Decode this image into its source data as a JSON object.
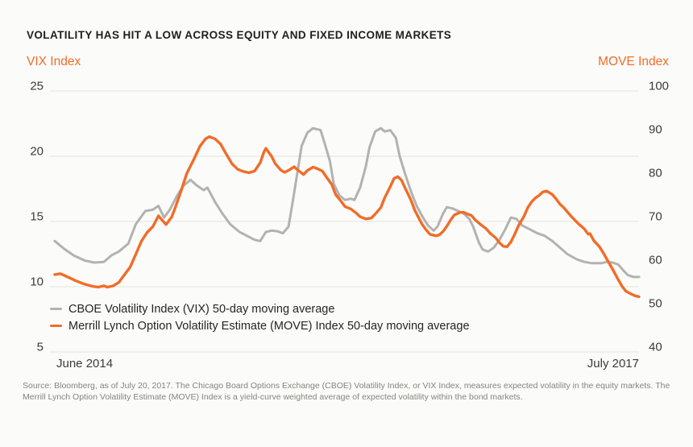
{
  "title": "VOLATILITY HAS HIT A LOW ACROSS EQUITY AND FIXED INCOME MARKETS",
  "source": "Source: Bloomberg, as of July 20, 2017. The Chicago Board Options Exchange (CBOE) Volatility Index, or VIX Index, measures expected volatility in the equity markets. The Merrill Lynch Option Volatility Estimate (MOVE) Index is a yield-curve weighted average of expected volatility within the bond markets.",
  "colors": {
    "vix_line": "#b3b2b1",
    "move_line": "#f16c29",
    "accent_orange": "#f16c29",
    "grid": "#e3e3e0"
  },
  "chart_data": {
    "type": "line",
    "title": "VOLATILITY HAS HIT A LOW ACROSS EQUITY AND FIXED INCOME MARKETS",
    "x_axis": {
      "start_label": "June 2014",
      "end_label": "July 2017",
      "range": [
        2014.45,
        2017.55
      ]
    },
    "left_axis": {
      "title": "VIX Index",
      "min": 5,
      "max": 25,
      "ticks": [
        25,
        20,
        15,
        10,
        5
      ]
    },
    "right_axis": {
      "title": "MOVE Index",
      "min": 40,
      "max": 100,
      "ticks": [
        100,
        90,
        80,
        70,
        60,
        50,
        40
      ]
    },
    "grid": true,
    "legend_position": "bottom-left",
    "series": [
      {
        "name": "CBOE Volatility Index (VIX) 50-day moving average",
        "axis": "left",
        "color": "#b3b2b1",
        "points": [
          [
            2014.45,
            13.5
          ],
          [
            2014.5,
            12.9
          ],
          [
            2014.55,
            12.4
          ],
          [
            2014.61,
            12.0
          ],
          [
            2014.66,
            11.85
          ],
          [
            2014.71,
            11.9
          ],
          [
            2014.75,
            12.4
          ],
          [
            2014.79,
            12.7
          ],
          [
            2014.84,
            13.3
          ],
          [
            2014.88,
            14.8
          ],
          [
            2014.93,
            15.8
          ],
          [
            2014.97,
            15.9
          ],
          [
            2015.0,
            16.2
          ],
          [
            2015.03,
            15.3
          ],
          [
            2015.06,
            15.9
          ],
          [
            2015.1,
            17.0
          ],
          [
            2015.13,
            17.7
          ],
          [
            2015.17,
            18.2
          ],
          [
            2015.2,
            17.8
          ],
          [
            2015.24,
            17.4
          ],
          [
            2015.26,
            17.6
          ],
          [
            2015.3,
            16.5
          ],
          [
            2015.34,
            15.6
          ],
          [
            2015.38,
            14.8
          ],
          [
            2015.43,
            14.2
          ],
          [
            2015.47,
            13.9
          ],
          [
            2015.51,
            13.6
          ],
          [
            2015.54,
            13.5
          ],
          [
            2015.57,
            14.2
          ],
          [
            2015.6,
            14.3
          ],
          [
            2015.63,
            14.25
          ],
          [
            2015.66,
            14.1
          ],
          [
            2015.69,
            14.6
          ],
          [
            2015.71,
            16.3
          ],
          [
            2015.74,
            19.0
          ],
          [
            2015.76,
            20.8
          ],
          [
            2015.79,
            21.8
          ],
          [
            2015.82,
            22.15
          ],
          [
            2015.86,
            22.0
          ],
          [
            2015.88,
            21.1
          ],
          [
            2015.91,
            19.6
          ],
          [
            2015.93,
            17.9
          ],
          [
            2015.96,
            17.0
          ],
          [
            2015.99,
            16.65
          ],
          [
            2016.02,
            16.75
          ],
          [
            2016.04,
            16.65
          ],
          [
            2016.07,
            17.6
          ],
          [
            2016.1,
            19.2
          ],
          [
            2016.12,
            20.7
          ],
          [
            2016.15,
            21.9
          ],
          [
            2016.18,
            22.15
          ],
          [
            2016.2,
            21.9
          ],
          [
            2016.23,
            22.0
          ],
          [
            2016.26,
            21.4
          ],
          [
            2016.28,
            20.0
          ],
          [
            2016.31,
            18.6
          ],
          [
            2016.34,
            17.3
          ],
          [
            2016.37,
            16.2
          ],
          [
            2016.4,
            15.4
          ],
          [
            2016.43,
            14.7
          ],
          [
            2016.46,
            14.3
          ],
          [
            2016.48,
            14.6
          ],
          [
            2016.51,
            15.6
          ],
          [
            2016.53,
            16.1
          ],
          [
            2016.56,
            16.0
          ],
          [
            2016.59,
            15.8
          ],
          [
            2016.62,
            15.6
          ],
          [
            2016.65,
            15.2
          ],
          [
            2016.67,
            14.6
          ],
          [
            2016.7,
            13.4
          ],
          [
            2016.72,
            12.85
          ],
          [
            2016.75,
            12.7
          ],
          [
            2016.78,
            13.0
          ],
          [
            2016.81,
            13.6
          ],
          [
            2016.84,
            14.4
          ],
          [
            2016.87,
            15.3
          ],
          [
            2016.9,
            15.2
          ],
          [
            2016.93,
            14.7
          ],
          [
            2016.97,
            14.4
          ],
          [
            2017.01,
            14.1
          ],
          [
            2017.05,
            13.9
          ],
          [
            2017.09,
            13.5
          ],
          [
            2017.13,
            13.0
          ],
          [
            2017.17,
            12.5
          ],
          [
            2017.22,
            12.1
          ],
          [
            2017.26,
            11.9
          ],
          [
            2017.3,
            11.8
          ],
          [
            2017.35,
            11.8
          ],
          [
            2017.38,
            11.9
          ],
          [
            2017.41,
            11.85
          ],
          [
            2017.44,
            11.7
          ],
          [
            2017.47,
            11.2
          ],
          [
            2017.49,
            10.9
          ],
          [
            2017.52,
            10.75
          ],
          [
            2017.55,
            10.75
          ]
        ]
      },
      {
        "name": "Merrill Lynch Option Volatility Estimate (MOVE) Index 50-day moving average",
        "axis": "right",
        "color": "#f16c29",
        "points": [
          [
            2014.45,
            57.8
          ],
          [
            2014.48,
            58.0
          ],
          [
            2014.52,
            57.2
          ],
          [
            2014.56,
            56.4
          ],
          [
            2014.6,
            55.7
          ],
          [
            2014.65,
            55.1
          ],
          [
            2014.68,
            54.9
          ],
          [
            2014.71,
            55.2
          ],
          [
            2014.73,
            54.9
          ],
          [
            2014.76,
            55.2
          ],
          [
            2014.79,
            56.0
          ],
          [
            2014.81,
            57.2
          ],
          [
            2014.85,
            59.5
          ],
          [
            2014.88,
            62.5
          ],
          [
            2014.91,
            65.5
          ],
          [
            2014.94,
            67.5
          ],
          [
            2014.97,
            68.8
          ],
          [
            2015.0,
            71.3
          ],
          [
            2015.04,
            69.3
          ],
          [
            2015.07,
            71.0
          ],
          [
            2015.09,
            73.3
          ],
          [
            2015.12,
            77.0
          ],
          [
            2015.15,
            81.0
          ],
          [
            2015.19,
            84.5
          ],
          [
            2015.22,
            87.3
          ],
          [
            2015.25,
            89.0
          ],
          [
            2015.27,
            89.5
          ],
          [
            2015.3,
            89.0
          ],
          [
            2015.33,
            87.8
          ],
          [
            2015.36,
            85.5
          ],
          [
            2015.39,
            83.3
          ],
          [
            2015.42,
            82.0
          ],
          [
            2015.45,
            81.5
          ],
          [
            2015.48,
            81.2
          ],
          [
            2015.51,
            81.6
          ],
          [
            2015.54,
            83.5
          ],
          [
            2015.56,
            86.0
          ],
          [
            2015.57,
            86.8
          ],
          [
            2015.6,
            85.0
          ],
          [
            2015.62,
            83.3
          ],
          [
            2015.65,
            81.8
          ],
          [
            2015.67,
            81.3
          ],
          [
            2015.7,
            82.0
          ],
          [
            2015.72,
            82.6
          ],
          [
            2015.74,
            81.8
          ],
          [
            2015.77,
            80.8
          ],
          [
            2015.79,
            81.7
          ],
          [
            2015.82,
            82.5
          ],
          [
            2015.84,
            82.2
          ],
          [
            2015.87,
            81.6
          ],
          [
            2015.89,
            80.3
          ],
          [
            2015.92,
            78.5
          ],
          [
            2015.94,
            76.2
          ],
          [
            2015.97,
            74.6
          ],
          [
            2015.99,
            73.4
          ],
          [
            2016.02,
            72.9
          ],
          [
            2016.05,
            71.9
          ],
          [
            2016.07,
            71.1
          ],
          [
            2016.1,
            70.6
          ],
          [
            2016.13,
            70.8
          ],
          [
            2016.15,
            71.7
          ],
          [
            2016.18,
            73.2
          ],
          [
            2016.2,
            75.4
          ],
          [
            2016.23,
            78.0
          ],
          [
            2016.25,
            79.9
          ],
          [
            2016.27,
            80.3
          ],
          [
            2016.29,
            79.5
          ],
          [
            2016.31,
            77.6
          ],
          [
            2016.34,
            74.9
          ],
          [
            2016.36,
            72.6
          ],
          [
            2016.38,
            70.9
          ],
          [
            2016.4,
            69.3
          ],
          [
            2016.42,
            68.1
          ],
          [
            2016.44,
            67.1
          ],
          [
            2016.47,
            66.7
          ],
          [
            2016.49,
            66.9
          ],
          [
            2016.51,
            67.7
          ],
          [
            2016.53,
            68.9
          ],
          [
            2016.55,
            70.3
          ],
          [
            2016.57,
            71.5
          ],
          [
            2016.6,
            72.1
          ],
          [
            2016.62,
            72.1
          ],
          [
            2016.64,
            71.7
          ],
          [
            2016.66,
            71.4
          ],
          [
            2016.68,
            70.4
          ],
          [
            2016.71,
            69.3
          ],
          [
            2016.74,
            68.3
          ],
          [
            2016.76,
            67.3
          ],
          [
            2016.79,
            66.2
          ],
          [
            2016.81,
            65.1
          ],
          [
            2016.83,
            64.3
          ],
          [
            2016.85,
            64.2
          ],
          [
            2016.87,
            65.3
          ],
          [
            2016.89,
            67.0
          ],
          [
            2016.91,
            69.0
          ],
          [
            2016.94,
            71.2
          ],
          [
            2016.96,
            73.2
          ],
          [
            2016.98,
            74.5
          ],
          [
            2017.0,
            75.4
          ],
          [
            2017.02,
            76.0
          ],
          [
            2017.04,
            76.8
          ],
          [
            2017.06,
            77.0
          ],
          [
            2017.09,
            76.2
          ],
          [
            2017.11,
            75.2
          ],
          [
            2017.13,
            74.0
          ],
          [
            2017.15,
            73.2
          ],
          [
            2017.17,
            72.2
          ],
          [
            2017.19,
            71.2
          ],
          [
            2017.21,
            70.3
          ],
          [
            2017.23,
            69.4
          ],
          [
            2017.26,
            68.3
          ],
          [
            2017.28,
            67.1
          ],
          [
            2017.29,
            67.2
          ],
          [
            2017.31,
            65.6
          ],
          [
            2017.34,
            64.2
          ],
          [
            2017.36,
            62.8
          ],
          [
            2017.38,
            61.3
          ],
          [
            2017.4,
            59.8
          ],
          [
            2017.42,
            58.2
          ],
          [
            2017.44,
            56.6
          ],
          [
            2017.46,
            55.1
          ],
          [
            2017.48,
            54.0
          ],
          [
            2017.51,
            53.3
          ],
          [
            2017.53,
            52.9
          ],
          [
            2017.55,
            52.7
          ]
        ]
      }
    ]
  }
}
